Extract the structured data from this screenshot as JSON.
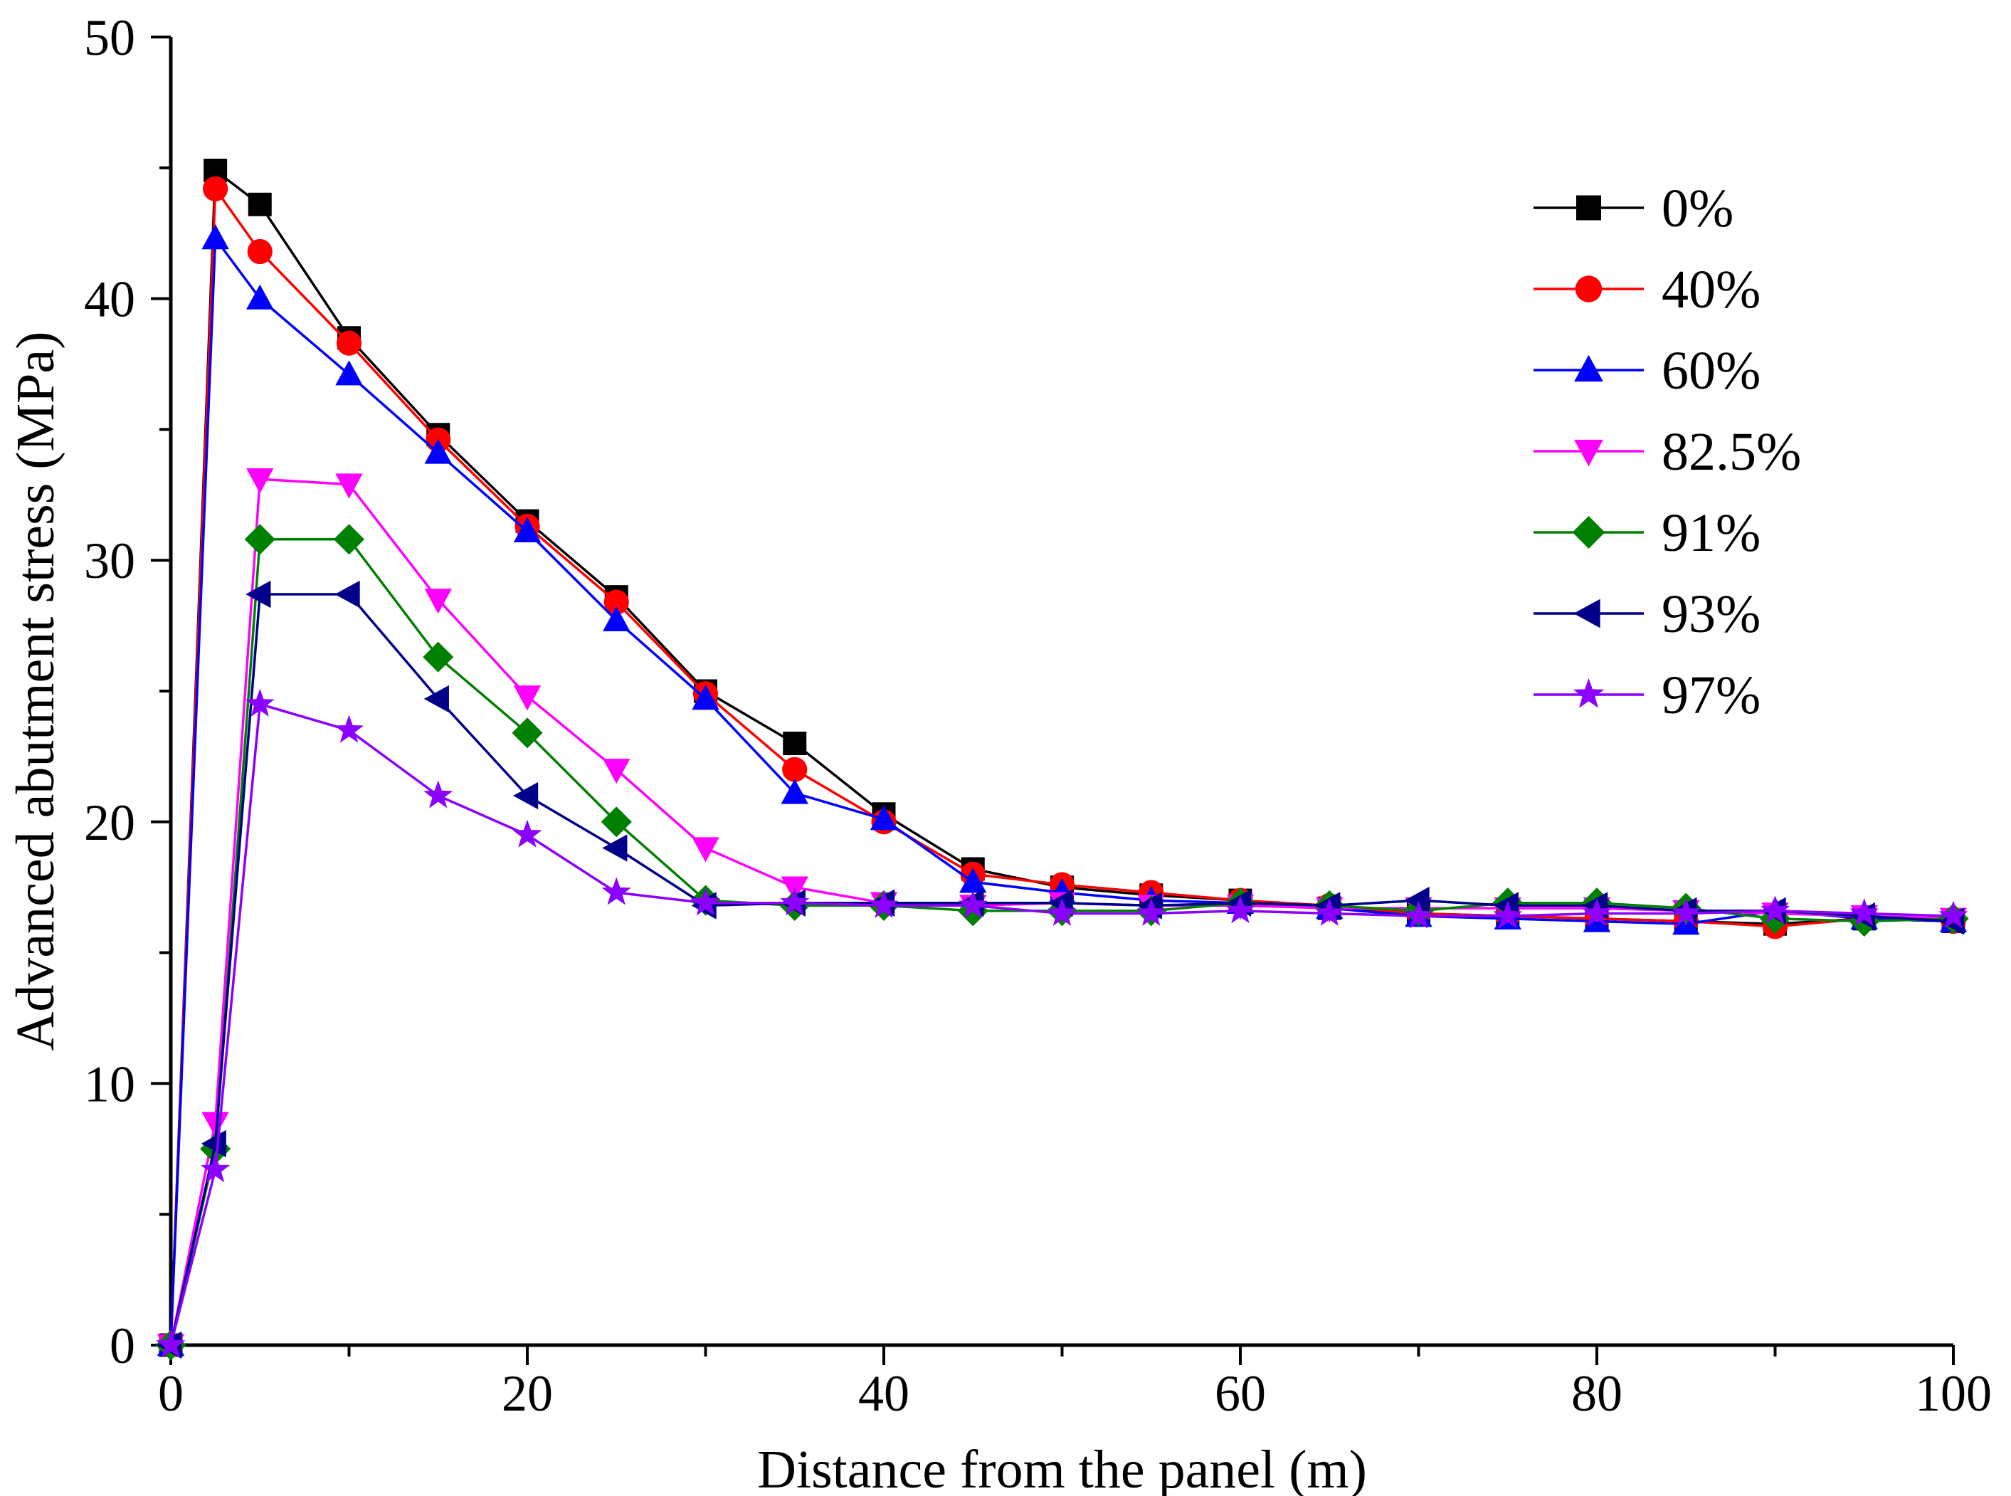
{
  "chart_data": {
    "type": "line",
    "title": "",
    "xlabel": "Distance from the panel (m)",
    "ylabel": "Advanced abutment stress (MPa)",
    "xlim": [
      0,
      100
    ],
    "ylim": [
      0,
      50
    ],
    "xticks": [
      0,
      20,
      40,
      60,
      80,
      100
    ],
    "yticks": [
      0,
      10,
      20,
      30,
      40,
      50
    ],
    "xtick_labels": [
      "0",
      "20",
      "40",
      "60",
      "80",
      "100"
    ],
    "ytick_labels": [
      "0",
      "10",
      "20",
      "30",
      "40",
      "50"
    ],
    "legend_position": "top-right",
    "x": [
      0,
      2.5,
      5,
      10,
      15,
      20,
      25,
      30,
      35,
      40,
      45,
      50,
      55,
      60,
      65,
      70,
      75,
      80,
      85,
      90,
      95,
      100
    ],
    "series": [
      {
        "name": "0%",
        "color": "#000000",
        "marker": "square",
        "values": [
          0,
          44.9,
          43.6,
          38.5,
          34.8,
          31.5,
          28.6,
          25.0,
          23.0,
          20.3,
          18.2,
          17.5,
          17.2,
          17.0,
          16.7,
          16.5,
          16.4,
          16.3,
          16.2,
          16.1,
          16.3,
          16.2
        ]
      },
      {
        "name": "40%",
        "color": "#ff0000",
        "marker": "circle",
        "values": [
          0,
          44.2,
          41.8,
          38.3,
          34.6,
          31.3,
          28.4,
          24.9,
          22.0,
          20.0,
          18.0,
          17.6,
          17.3,
          17.0,
          16.8,
          16.5,
          16.4,
          16.3,
          16.2,
          16.0,
          16.3,
          16.2
        ]
      },
      {
        "name": "60%",
        "color": "#0000ff",
        "marker": "triangle-up",
        "values": [
          0,
          42.3,
          40.0,
          37.1,
          34.1,
          31.1,
          27.7,
          24.7,
          21.1,
          20.1,
          17.7,
          17.3,
          17.0,
          16.9,
          16.7,
          16.4,
          16.3,
          16.2,
          16.1,
          16.6,
          16.3,
          16.2
        ]
      },
      {
        "name": "82.5%",
        "color": "#ff00ff",
        "marker": "triangle-down",
        "values": [
          0,
          8.5,
          33.1,
          32.9,
          28.5,
          24.8,
          22.0,
          19.0,
          17.5,
          16.9,
          16.8,
          16.9,
          16.8,
          16.8,
          16.7,
          16.7,
          16.7,
          16.7,
          16.6,
          16.5,
          16.4,
          16.3
        ]
      },
      {
        "name": "91%",
        "color": "#008000",
        "marker": "diamond",
        "values": [
          0,
          7.5,
          30.8,
          30.8,
          26.3,
          23.4,
          20.0,
          17.0,
          16.8,
          16.8,
          16.6,
          16.6,
          16.6,
          16.9,
          16.8,
          16.6,
          16.9,
          16.9,
          16.7,
          16.3,
          16.2,
          16.3
        ]
      },
      {
        "name": "93%",
        "color": "#00008b",
        "marker": "triangle-left",
        "values": [
          0,
          7.7,
          28.7,
          28.7,
          24.7,
          21.0,
          19.0,
          16.8,
          16.9,
          16.9,
          16.9,
          16.9,
          16.8,
          16.9,
          16.8,
          17.0,
          16.8,
          16.8,
          16.6,
          16.6,
          16.4,
          16.2
        ]
      },
      {
        "name": "97%",
        "color": "#8b00ff",
        "marker": "star",
        "values": [
          0,
          6.7,
          24.5,
          23.5,
          21.0,
          19.5,
          17.3,
          16.9,
          16.9,
          16.8,
          16.8,
          16.5,
          16.5,
          16.6,
          16.5,
          16.4,
          16.4,
          16.5,
          16.5,
          16.6,
          16.5,
          16.4
        ]
      }
    ]
  }
}
